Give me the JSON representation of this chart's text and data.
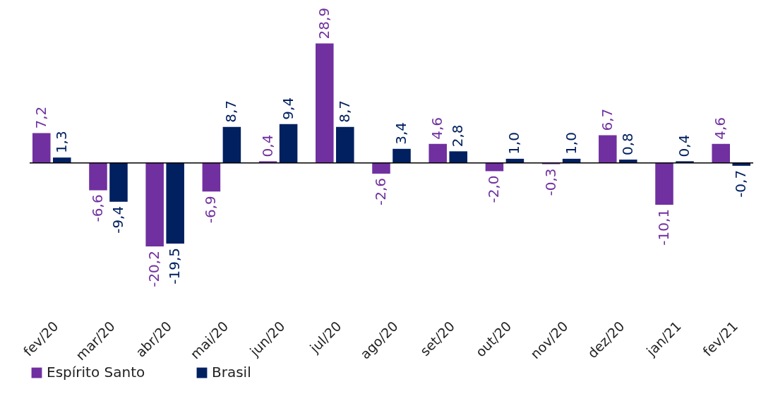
{
  "chart_data": {
    "type": "bar",
    "categories": [
      "fev/20",
      "mar/20",
      "abr/20",
      "mai/20",
      "jun/20",
      "jul/20",
      "ago/20",
      "set/20",
      "out/20",
      "nov/20",
      "dez/20",
      "jan/21",
      "fev/21"
    ],
    "series": [
      {
        "name": "Espírito Santo",
        "color": "#7030a0",
        "values": [
          7.2,
          -6.6,
          -20.2,
          -6.9,
          0.4,
          28.9,
          -2.6,
          4.6,
          -2.0,
          -0.3,
          6.7,
          -10.1,
          4.6
        ],
        "value_labels": [
          "7,2",
          "-6,6",
          "-20,2",
          "-6,9",
          "0,4",
          "28,9",
          "-2,6",
          "4,6",
          "-2,0",
          "-0,3",
          "6,7",
          "-10,1",
          "4,6"
        ]
      },
      {
        "name": "Brasil",
        "color": "#002060",
        "values": [
          1.3,
          -9.4,
          -19.5,
          8.7,
          9.4,
          8.7,
          3.4,
          2.8,
          1.0,
          1.0,
          0.8,
          0.4,
          -0.7
        ],
        "value_labels": [
          "1,3",
          "-9,4",
          "-19,5",
          "8,7",
          "9,4",
          "8,7",
          "3,4",
          "2,8",
          "1,0",
          "1,0",
          "0,8",
          "0,4",
          "-0,7"
        ]
      }
    ],
    "legend": "bottom",
    "grid": false,
    "tick_labels": "x"
  }
}
